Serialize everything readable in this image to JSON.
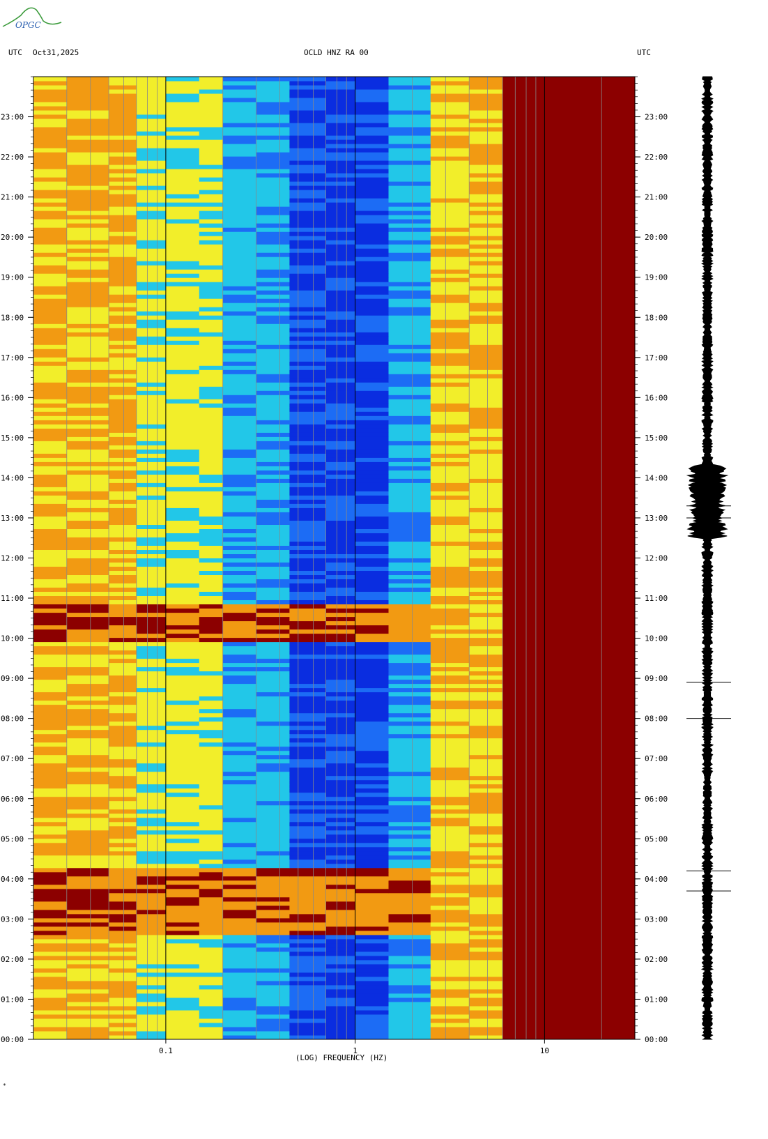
{
  "header": {
    "left_timezone": "UTC",
    "date": "Oct31,2025",
    "station": "OCLD HNZ RA 00",
    "right_timezone": "UTC"
  },
  "logo": {
    "text": "OPGC"
  },
  "colors": {
    "quiet": "#0a2de0",
    "low": "#1c6cf5",
    "mid_low": "#22c7e8",
    "mid": "#f2ee2a",
    "high": "#f29a12",
    "saturated": "#8c0000"
  },
  "chart_data": {
    "type": "heatmap",
    "title": "OCLD HNZ RA 00",
    "xlabel": "(LOG) FREQUENCY (HZ)",
    "x_scale": "log",
    "xlim": [
      0.02,
      30
    ],
    "x_ticks": [
      {
        "value": 0.1,
        "label": "0.1"
      },
      {
        "value": 1,
        "label": "1"
      },
      {
        "value": 10,
        "label": "10"
      }
    ],
    "ylim_hours": [
      0,
      24
    ],
    "y_ticks_left": [
      "23:00",
      "22:00",
      "21:00",
      "20:00",
      "19:00",
      "18:00",
      "17:00",
      "16:00",
      "15:00",
      "14:00",
      "13:00",
      "12:00",
      "11:00",
      "10:00",
      "09:00",
      "08:00",
      "07:00",
      "06:00",
      "05:00",
      "04:00",
      "03:00",
      "02:00",
      "01:00",
      "00:00"
    ],
    "y_ticks_right": [
      "23:00",
      "22:00",
      "21:00",
      "20:00",
      "19:00",
      "18:00",
      "17:00",
      "16:00",
      "15:00",
      "14:00",
      "13:00",
      "12:00",
      "11:00",
      "10:00",
      "09:00",
      "08:00",
      "07:00",
      "06:00",
      "05:00",
      "04:00",
      "03:00",
      "02:00",
      "01:00",
      "00:00"
    ],
    "colormap": "blue (low power) to dark red (high power)",
    "energy_bursts_utc_hours": [
      {
        "start": 9.9,
        "end": 10.9,
        "peak_freq_hz": [
          0.02,
          2.5
        ]
      },
      {
        "start": 2.6,
        "end": 4.3,
        "peak_freq_hz": [
          0.02,
          3
        ]
      }
    ],
    "trace_spikes_utc_hours": [
      13.3,
      13.0,
      8.9,
      8.0,
      4.2,
      3.7
    ]
  }
}
